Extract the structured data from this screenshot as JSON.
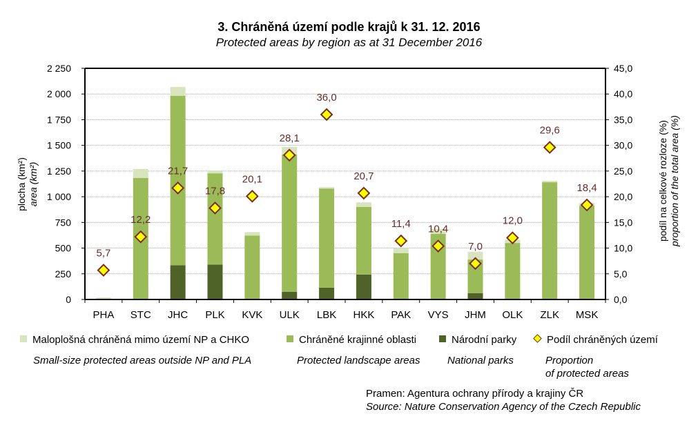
{
  "chart_data": {
    "type": "bar",
    "stacked": true,
    "title": "3. Chráněná území podle krajů k 31. 12. 2016",
    "subtitle": "Protected areas by region as at 31 December 2016",
    "categories": [
      "PHA",
      "STC",
      "JHC",
      "PLK",
      "KVK",
      "ULK",
      "LBK",
      "HKK",
      "PAK",
      "VYS",
      "JHM",
      "OLK",
      "ZLK",
      "MSK"
    ],
    "series": [
      {
        "name": "Národní parky",
        "name_en": "National parks",
        "type": "bar",
        "axis": "left",
        "color": "#4f6228",
        "values": [
          0,
          0,
          333,
          340,
          0,
          74,
          115,
          243,
          0,
          0,
          62,
          0,
          0,
          0
        ]
      },
      {
        "name": "Chráněné krajinné oblasti",
        "name_en": "Protected landscape areas",
        "type": "bar",
        "axis": "left",
        "color": "#9bbb59",
        "values": [
          0,
          1183,
          1650,
          888,
          622,
          1338,
          965,
          657,
          450,
          638,
          327,
          550,
          1141,
          913
        ]
      },
      {
        "name": "Maloplošná chráněná mimo území NP a CHKO",
        "name_en": "Small-size protected areas outside NP and PLA",
        "type": "bar",
        "axis": "left",
        "color": "#d7e4bd",
        "values": [
          20,
          87,
          85,
          27,
          34,
          72,
          13,
          45,
          47,
          49,
          74,
          32,
          13,
          27
        ]
      },
      {
        "name": "Podíl chráněných území",
        "name_en": "Proportion of protected areas",
        "type": "scatter",
        "axis": "right",
        "color": "#ffff00",
        "edge_color": "#7b2c1e",
        "values": [
          5.7,
          12.2,
          21.7,
          17.8,
          20.1,
          28.1,
          36.0,
          20.7,
          11.4,
          10.4,
          7.0,
          12.0,
          29.6,
          18.4
        ],
        "labels": [
          "5,7",
          "12,2",
          "21,7",
          "17,8",
          "20,1",
          "28,1",
          "36,0",
          "20,7",
          "11,4",
          "10,4",
          "7,0",
          "12,0",
          "29,6",
          "18,4"
        ]
      }
    ],
    "y_left": {
      "label_cz": "plocha (km²)",
      "label_en": "area (km²)",
      "ylim": [
        0,
        2250
      ],
      "ticks": [
        0,
        250,
        500,
        750,
        1000,
        1250,
        1500,
        1750,
        2000,
        2250
      ],
      "tick_labels": [
        "0",
        "250",
        "500",
        "750",
        "1 000",
        "1 250",
        "1 500",
        "1 750",
        "2 000",
        "2 250"
      ]
    },
    "y_right": {
      "label_cz": "podíl na celkové rozloze (%)",
      "label_en": "proportion of the total area (%)",
      "ylim": [
        0,
        45
      ],
      "ticks": [
        0,
        5,
        10,
        15,
        20,
        25,
        30,
        35,
        40,
        45
      ],
      "tick_labels": [
        "0,0",
        "5,0",
        "10,0",
        "15,0",
        "20,0",
        "25,0",
        "30,0",
        "35,0",
        "40,0",
        "45,0"
      ]
    },
    "grid": true,
    "legend_position": "bottom"
  },
  "legend": [
    {
      "label": "Maloplošná chráněná mimo území NP a CHKO",
      "label_en": "Small-size protected areas outside NP and PLA",
      "color": "#d7e4bd",
      "marker": "square"
    },
    {
      "label": "Chráněné krajinné oblasti",
      "label_en": "Protected landscape areas",
      "color": "#9bbb59",
      "marker": "square"
    },
    {
      "label": "Národní parky",
      "label_en": "National parks",
      "color": "#4f6228",
      "marker": "square"
    },
    {
      "label": "Podíl chráněných území",
      "label_en_1": "Proportion",
      "label_en_2": "of protected areas",
      "color": "#ffff00",
      "marker": "diamond"
    }
  ],
  "source": {
    "cz": "Pramen:  Agentura ochrany přírody a krajiny ČR",
    "en": "Source: Nature Conservation Agency of the Czech Republic"
  }
}
